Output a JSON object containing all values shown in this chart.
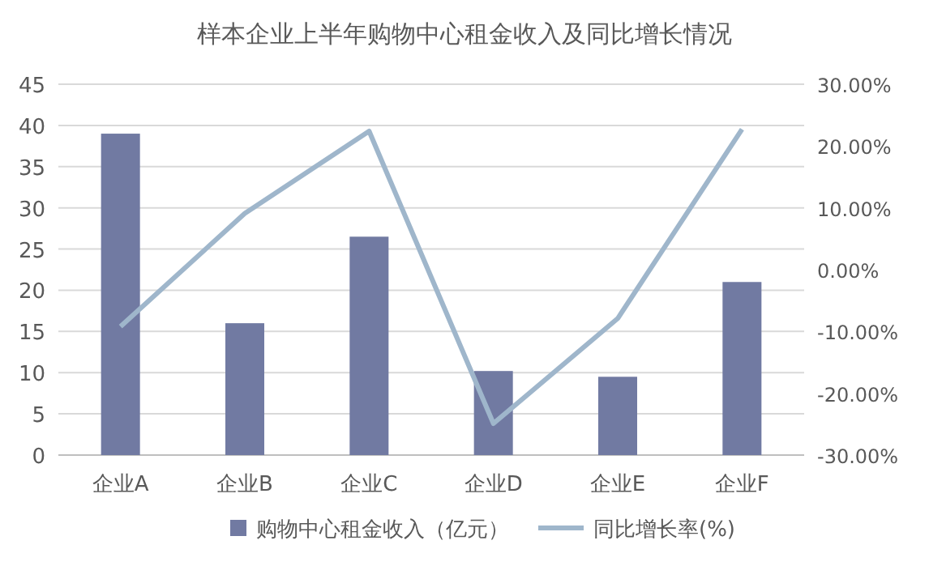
{
  "chart_data": {
    "type": "bar",
    "title": "样本企业上半年购物中心租金收入及同比增长情况",
    "categories": [
      "企业A",
      "企业B",
      "企业C",
      "企业D",
      "企业E",
      "企业F"
    ],
    "series": [
      {
        "name": "购物中心租金收入（亿元）",
        "color": "#717aa2",
        "values": [
          39.0,
          16.0,
          26.5,
          10.2,
          9.5,
          21.0
        ]
      },
      {
        "name": "同比增长率(%)",
        "type": "line",
        "axis": "y2",
        "color": "#9fb6cb",
        "values": [
          -9.2,
          9.1,
          22.4,
          -24.9,
          -7.9,
          22.7
        ]
      }
    ],
    "ylim": [
      0,
      45
    ],
    "yticks": [
      0,
      5,
      10,
      15,
      20,
      25,
      30,
      35,
      40,
      45
    ],
    "y2lim": [
      -30,
      30
    ],
    "y2ticks": [
      {
        "value": -30,
        "label": "-30.00%"
      },
      {
        "value": -20,
        "label": "-20.00%"
      },
      {
        "value": -10,
        "label": "-10.00%"
      },
      {
        "value": 0,
        "label": "0.00%"
      },
      {
        "value": 10,
        "label": "10.00%"
      },
      {
        "value": 20,
        "label": "20.00%"
      },
      {
        "value": 30,
        "label": "30.00%"
      }
    ],
    "grid": "y",
    "legend": "bottom"
  }
}
